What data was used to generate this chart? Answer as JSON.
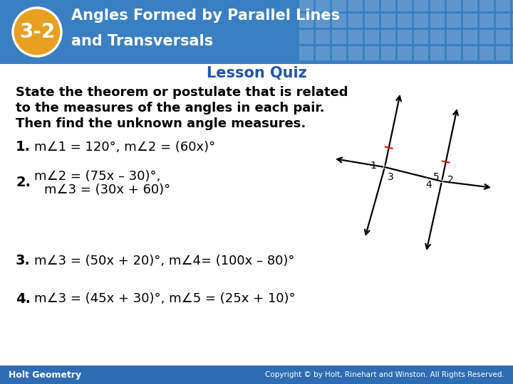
{
  "header_bg_color": "#3a7fc1",
  "header_text_color": "#ffffff",
  "badge_color": "#e8a020",
  "badge_text": "3-2",
  "lesson_quiz_text": "Lesson Quiz",
  "lesson_quiz_color": "#2255aa",
  "body_bg_color": "#ffffff",
  "footer_bg_color": "#2e6db4",
  "footer_left": "Holt Geometry",
  "footer_right": "Copyright © by Holt, Rinehart and Winston. All Rights Reserved.",
  "footer_text_color": "#ffffff",
  "intro_line1": "State the theorem or postulate that is related",
  "intro_line2": "to the measures of the angles in each pair.",
  "intro_line3": "Then find the unknown angle measures.",
  "p1_num": "1.",
  "p1_text": "m∠1 = 120°, m∠2 = (60x)°",
  "p2_num": "2.",
  "p2_line1": "m∠2 = (75x – 30)°,",
  "p2_line2": "m∠3 = (30x + 60)°",
  "p3_num": "3.",
  "p3_text": "m∠3 = (50x + 20)°, m∠4= (100x – 80)°",
  "p4_num": "4.",
  "p4_text": "m∠3 = (45x + 30)°, m∠5 = (25x + 10)°",
  "tile_color": "#5a9fd4",
  "tile_alpha": 0.18
}
